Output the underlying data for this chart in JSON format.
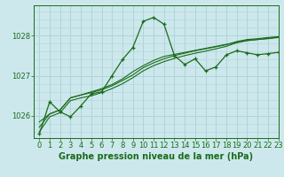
{
  "title": "Graphe pression niveau de la mer (hPa)",
  "bg_color": "#cce8ec",
  "grid_color": "#b0d4d8",
  "line_color": "#1a6b1a",
  "xlim": [
    -0.5,
    23
  ],
  "ylim": [
    1025.45,
    1028.75
  ],
  "yticks": [
    1026,
    1027,
    1028
  ],
  "xticks": [
    0,
    1,
    2,
    3,
    4,
    5,
    6,
    7,
    8,
    9,
    10,
    11,
    12,
    13,
    14,
    15,
    16,
    17,
    18,
    19,
    20,
    21,
    22,
    23
  ],
  "series": [
    [
      1025.55,
      1026.35,
      1026.1,
      1025.98,
      1026.25,
      1026.55,
      1026.6,
      1027.0,
      1027.4,
      1027.7,
      1028.35,
      1028.45,
      1028.28,
      1027.5,
      1027.28,
      1027.42,
      1027.12,
      1027.22,
      1027.52,
      1027.62,
      1027.57,
      1027.52,
      1027.55,
      1027.58
    ],
    [
      1025.85,
      1026.05,
      1026.15,
      1026.45,
      1026.52,
      1026.6,
      1026.68,
      1026.78,
      1026.92,
      1027.1,
      1027.25,
      1027.38,
      1027.48,
      1027.53,
      1027.58,
      1027.63,
      1027.68,
      1027.73,
      1027.78,
      1027.83,
      1027.88,
      1027.9,
      1027.92,
      1027.95
    ],
    [
      1025.72,
      1026.05,
      1026.15,
      1026.45,
      1026.52,
      1026.58,
      1026.65,
      1026.75,
      1026.88,
      1027.02,
      1027.2,
      1027.32,
      1027.42,
      1027.5,
      1027.56,
      1027.62,
      1027.67,
      1027.72,
      1027.77,
      1027.85,
      1027.9,
      1027.92,
      1027.95,
      1027.97
    ],
    [
      1025.6,
      1025.98,
      1026.08,
      1026.38,
      1026.45,
      1026.5,
      1026.58,
      1026.68,
      1026.8,
      1026.95,
      1027.12,
      1027.25,
      1027.35,
      1027.43,
      1027.5,
      1027.56,
      1027.61,
      1027.67,
      1027.73,
      1027.82,
      1027.87,
      1027.9,
      1027.93,
      1027.96
    ]
  ],
  "title_fontsize": 7,
  "tick_fontsize": 6
}
